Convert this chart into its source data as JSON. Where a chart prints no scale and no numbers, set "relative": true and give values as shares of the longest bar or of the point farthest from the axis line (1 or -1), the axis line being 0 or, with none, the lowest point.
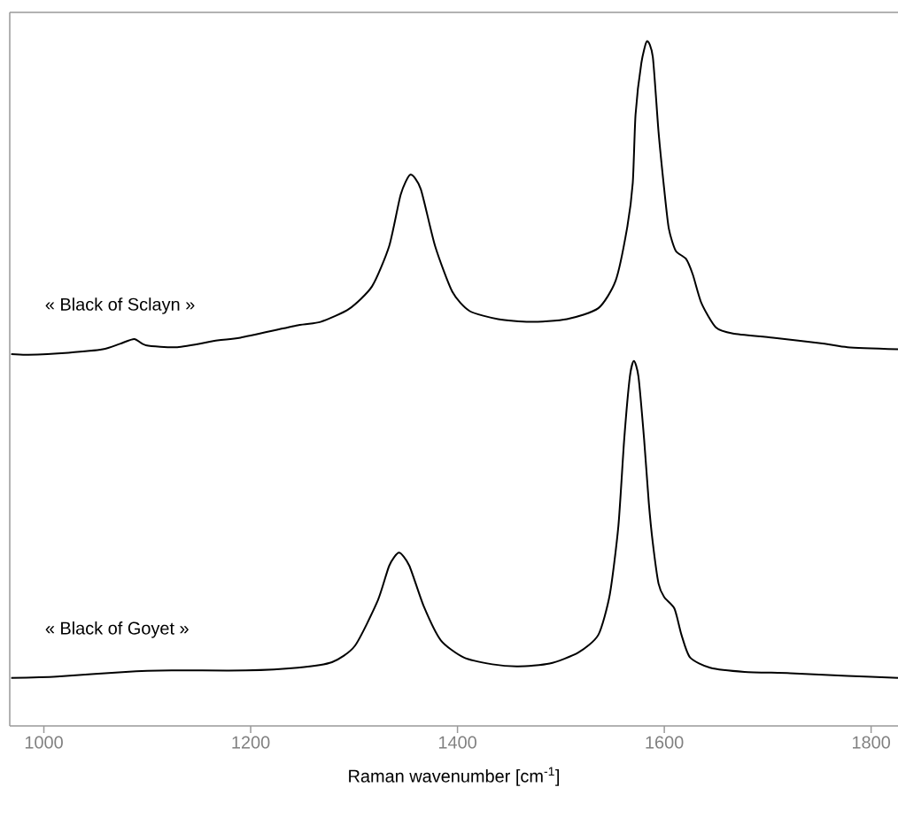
{
  "chart_data": {
    "type": "line",
    "xlabel": "Raman wavenumber [cm$^{-1}$]",
    "relative": true,
    "xlim": [
      967,
      1826
    ],
    "xticks": [
      1000,
      1200,
      1400,
      1600,
      1800
    ],
    "series": [
      {
        "name": "« Black of Sclayn »",
        "color": "#000000",
        "x": [
          968.4,
          985,
          1023.8,
          1057,
          1073.6,
          1087.5,
          1098.6,
          1129,
          1167.8,
          1190,
          1245.4,
          1267.5,
          1295.2,
          1317.4,
          1334,
          1345.1,
          1354.5,
          1364.5,
          1378.3,
          1395,
          1411.6,
          1439.3,
          1469.8,
          1505.8,
          1536.2,
          1552.9,
          1563.9,
          1569.5,
          1572.2,
          1577.8,
          1583.3,
          1588.9,
          1594.4,
          1599.9,
          1604.4,
          1611,
          1621,
          1627.6,
          1636,
          1649.8,
          1666.4,
          1705.2,
          1755,
          1777.2,
          1826
        ],
        "values": [
          0.543,
          0.542,
          0.545,
          0.55,
          0.558,
          0.565,
          0.556,
          0.553,
          0.563,
          0.567,
          0.585,
          0.59,
          0.609,
          0.642,
          0.701,
          0.776,
          0.805,
          0.784,
          0.701,
          0.634,
          0.606,
          0.594,
          0.59,
          0.594,
          0.61,
          0.65,
          0.726,
          0.793,
          0.893,
          0.968,
          1.0,
          0.977,
          0.868,
          0.784,
          0.726,
          0.694,
          0.682,
          0.659,
          0.617,
          0.582,
          0.573,
          0.567,
          0.558,
          0.553,
          0.55
        ]
      },
      {
        "name": "« Black of Goyet »",
        "color": "#000000",
        "x": [
          968.4,
          1012.7,
          1079.2,
          1123.5,
          1195.5,
          1245.4,
          1278.6,
          1300.8,
          1322.9,
          1334,
          1343.4,
          1353.4,
          1367.3,
          1383.9,
          1406,
          1433.7,
          1458.7,
          1489.1,
          1516.8,
          1536.2,
          1547.3,
          1555.6,
          1561.2,
          1566.7,
          1570.6,
          1575,
          1580.5,
          1585,
          1588.9,
          1594.4,
          1599.9,
          1609.9,
          1616.6,
          1624.9,
          1644.3,
          1677.5,
          1721.8,
          1777.2,
          1826
        ],
        "values": [
          0.07,
          0.072,
          0.079,
          0.081,
          0.081,
          0.085,
          0.093,
          0.117,
          0.183,
          0.234,
          0.253,
          0.234,
          0.175,
          0.125,
          0.1,
          0.09,
          0.087,
          0.091,
          0.107,
          0.133,
          0.192,
          0.292,
          0.418,
          0.51,
          0.533,
          0.51,
          0.418,
          0.326,
          0.267,
          0.208,
          0.188,
          0.171,
          0.133,
          0.1,
          0.085,
          0.079,
          0.077,
          0.073,
          0.07
        ]
      }
    ]
  }
}
